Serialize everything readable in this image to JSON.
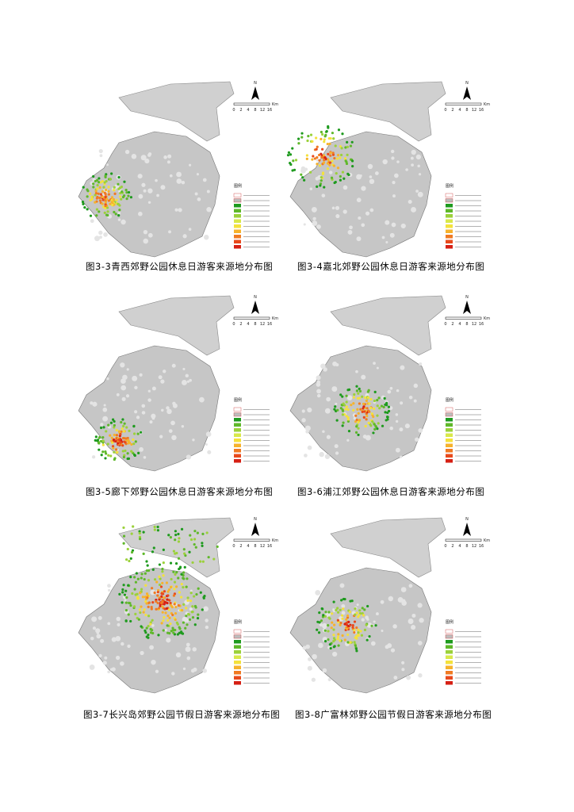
{
  "figures": [
    {
      "caption": "图3-3青西郊野公园休息日游客来源地分布图"
    },
    {
      "caption": "图3-4嘉北郊野公园休息日游客来源地分布图"
    },
    {
      "caption": "图3-5廊下郊野公园休息日游客来源地分布图"
    },
    {
      "caption": "图3-6浦江郊野公园休息日游客来源地分布图"
    },
    {
      "caption": "图3-7长兴岛郊野公园节假日游客来源地分布图"
    },
    {
      "caption": "图3-8广富林郊野公园节假日游客来源地分布图"
    }
  ],
  "legend_title": "图例",
  "north": "N",
  "scale": {
    "ticks": [
      "0",
      "2",
      "4",
      "8",
      "12",
      "16"
    ],
    "unit": "Km"
  }
}
